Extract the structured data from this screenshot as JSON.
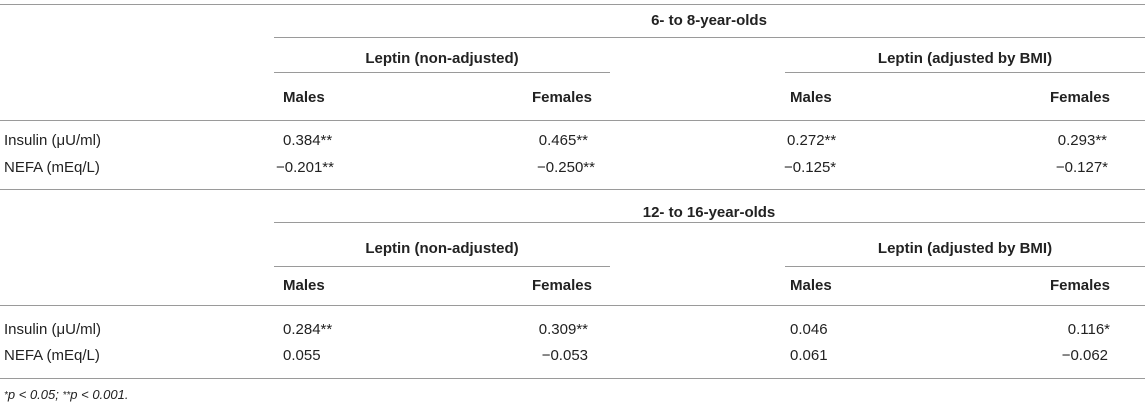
{
  "table": {
    "sections": [
      {
        "title": "6- to 8-year-olds",
        "groups": [
          "Leptin (non-adjusted)",
          "Leptin (adjusted by BMI)"
        ],
        "columns": [
          "Males",
          "Females",
          "Males",
          "Females"
        ],
        "rows": [
          {
            "label": "Insulin (μU/ml)",
            "values": [
              "0.384**",
              "0.465**",
              "0.272**",
              "0.293**"
            ]
          },
          {
            "label": "NEFA (mEq/L)",
            "values": [
              "−0.201**",
              "−0.250**",
              "−0.125*",
              "−0.127*"
            ]
          }
        ]
      },
      {
        "title": "12- to 16-year-olds",
        "groups": [
          "Leptin (non-adjusted)",
          "Leptin (adjusted by BMI)"
        ],
        "columns": [
          "Males",
          "Females",
          "Males",
          "Females"
        ],
        "rows": [
          {
            "label": "Insulin (μU/ml)",
            "values": [
              "0.284**",
              "0.309**",
              "0.046",
              "0.116*"
            ]
          },
          {
            "label": "NEFA (mEq/L)",
            "values": [
              "0.055",
              "−0.053",
              "0.061",
              "−0.062"
            ]
          }
        ]
      }
    ],
    "footnote": {
      "sup1": "*",
      "part1": "p < 0.05; ",
      "sup2": "**",
      "part2": "p < 0.001."
    }
  }
}
